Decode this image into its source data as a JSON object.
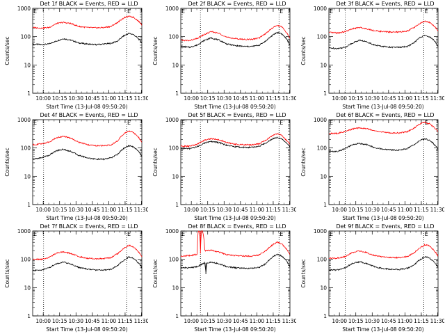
{
  "figure": {
    "x_tick_labels": [
      "10:00",
      "10:15",
      "10:30",
      "10:45",
      "11:00",
      "11:15",
      "11:30"
    ],
    "y_tick_labels": [
      "1",
      "10",
      "100",
      "1000"
    ],
    "xlabel": "Start Time (13-Jul-08 09:50:20)",
    "ylabel": "Counts/sec",
    "colors": {
      "events": "#000000",
      "lld": "#ff0000",
      "background": "#ffffff"
    }
  },
  "chart_data": [
    {
      "type": "line",
      "title": "Det 1f BLACK = Events, RED = LLD",
      "marker_left": "E",
      "marker_right": "E",
      "x_minutes_range": [
        0,
        100
      ],
      "ylim": [
        1,
        1000
      ],
      "yscale": "log",
      "vlines": [
        10,
        86
      ],
      "series": [
        {
          "name": "BLACK = Events",
          "x": [
            0,
            8,
            15,
            22,
            28,
            35,
            42,
            50,
            58,
            65,
            72,
            78,
            84,
            88,
            92,
            96,
            100
          ],
          "values": [
            55,
            52,
            55,
            70,
            85,
            75,
            60,
            55,
            52,
            55,
            58,
            70,
            110,
            130,
            120,
            90,
            60
          ]
        },
        {
          "name": "RED = LLD",
          "x": [
            0,
            8,
            15,
            22,
            28,
            35,
            42,
            50,
            58,
            65,
            72,
            78,
            84,
            88,
            92,
            96,
            100
          ],
          "values": [
            210,
            200,
            210,
            290,
            320,
            290,
            230,
            210,
            205,
            210,
            230,
            320,
            470,
            520,
            490,
            380,
            260
          ]
        }
      ]
    },
    {
      "type": "line",
      "title": "Det 2f BLACK = Events, RED = LLD",
      "marker_left": "E",
      "marker_right": "E",
      "x_minutes_range": [
        0,
        100
      ],
      "ylim": [
        1,
        1000
      ],
      "yscale": "log",
      "vlines": [
        18,
        90
      ],
      "series": [
        {
          "name": "BLACK = Events",
          "x": [
            0,
            8,
            15,
            22,
            28,
            35,
            42,
            50,
            58,
            65,
            72,
            78,
            84,
            88,
            92,
            96,
            100
          ],
          "values": [
            45,
            42,
            50,
            75,
            90,
            75,
            55,
            48,
            45,
            45,
            50,
            70,
            110,
            140,
            130,
            90,
            50
          ]
        },
        {
          "name": "RED = LLD",
          "x": [
            0,
            8,
            15,
            22,
            28,
            35,
            42,
            50,
            58,
            65,
            72,
            78,
            84,
            88,
            92,
            96,
            100
          ],
          "values": [
            75,
            72,
            85,
            120,
            150,
            130,
            95,
            85,
            80,
            80,
            90,
            130,
            200,
            250,
            230,
            150,
            90
          ]
        }
      ]
    },
    {
      "type": "line",
      "title": "Det 3f BLACK = Events, RED = LLD",
      "marker_left": "E",
      "marker_right": "E",
      "x_minutes_range": [
        0,
        100
      ],
      "ylim": [
        1,
        1000
      ],
      "yscale": "log",
      "vlines": [
        15,
        87
      ],
      "series": [
        {
          "name": "BLACK = Events",
          "x": [
            0,
            8,
            15,
            22,
            28,
            35,
            42,
            50,
            58,
            65,
            72,
            78,
            84,
            88,
            92,
            96,
            100
          ],
          "values": [
            40,
            38,
            42,
            60,
            75,
            65,
            50,
            45,
            42,
            42,
            45,
            60,
            95,
            110,
            100,
            75,
            45
          ]
        },
        {
          "name": "RED = LLD",
          "x": [
            0,
            8,
            15,
            22,
            28,
            35,
            42,
            50,
            58,
            65,
            72,
            78,
            84,
            88,
            92,
            96,
            100
          ],
          "values": [
            140,
            135,
            150,
            190,
            210,
            190,
            160,
            150,
            145,
            145,
            160,
            210,
            300,
            350,
            320,
            240,
            160
          ]
        }
      ]
    },
    {
      "type": "line",
      "title": "Det 4f BLACK = Events, RED = LLD",
      "marker_left": "E",
      "marker_right": "E",
      "x_minutes_range": [
        0,
        100
      ],
      "ylim": [
        1,
        1000
      ],
      "yscale": "log",
      "vlines": [
        10,
        86
      ],
      "series": [
        {
          "name": "BLACK = Events",
          "x": [
            0,
            8,
            15,
            22,
            28,
            35,
            42,
            50,
            58,
            65,
            72,
            78,
            84,
            88,
            92,
            96,
            100
          ],
          "values": [
            40,
            45,
            55,
            80,
            90,
            75,
            55,
            45,
            40,
            40,
            45,
            60,
            100,
            120,
            110,
            85,
            50
          ]
        },
        {
          "name": "RED = LLD",
          "x": [
            0,
            8,
            15,
            22,
            28,
            35,
            42,
            50,
            58,
            65,
            72,
            78,
            84,
            88,
            92,
            96,
            100
          ],
          "values": [
            130,
            140,
            160,
            230,
            260,
            220,
            160,
            130,
            120,
            120,
            130,
            180,
            320,
            400,
            360,
            260,
            160
          ]
        }
      ]
    },
    {
      "type": "line",
      "title": "Det 5f BLACK = Events, RED = LLD",
      "marker_left": "E",
      "marker_right": "E",
      "x_minutes_range": [
        0,
        100
      ],
      "ylim": [
        1,
        1000
      ],
      "yscale": "log",
      "vlines": [
        18,
        90
      ],
      "series": [
        {
          "name": "BLACK = Events",
          "x": [
            0,
            8,
            15,
            22,
            28,
            35,
            42,
            50,
            58,
            65,
            72,
            78,
            84,
            88,
            92,
            96,
            100
          ],
          "values": [
            95,
            95,
            110,
            150,
            170,
            155,
            125,
            110,
            105,
            105,
            115,
            150,
            210,
            240,
            220,
            160,
            110
          ]
        },
        {
          "name": "RED = LLD",
          "x": [
            0,
            8,
            15,
            22,
            28,
            35,
            42,
            50,
            58,
            65,
            72,
            78,
            84,
            88,
            92,
            96,
            100
          ],
          "values": [
            115,
            115,
            135,
            190,
            215,
            195,
            155,
            135,
            130,
            130,
            140,
            190,
            270,
            320,
            290,
            200,
            135
          ]
        }
      ]
    },
    {
      "type": "line",
      "title": "Det 6f BLACK = Events, RED = LLD",
      "marker_left": "E",
      "marker_right": "E",
      "x_minutes_range": [
        0,
        100
      ],
      "ylim": [
        1,
        1000
      ],
      "yscale": "log",
      "vlines": [
        15,
        87
      ],
      "series": [
        {
          "name": "BLACK = Events",
          "x": [
            0,
            8,
            15,
            22,
            28,
            35,
            42,
            50,
            58,
            65,
            72,
            78,
            84,
            88,
            92,
            96,
            100
          ],
          "values": [
            75,
            75,
            95,
            130,
            145,
            130,
            100,
            90,
            85,
            85,
            95,
            130,
            190,
            210,
            190,
            140,
            90
          ]
        },
        {
          "name": "RED = LLD",
          "x": [
            0,
            8,
            15,
            22,
            28,
            35,
            42,
            50,
            58,
            65,
            72,
            78,
            84,
            88,
            92,
            96,
            100
          ],
          "values": [
            320,
            330,
            380,
            470,
            520,
            480,
            400,
            360,
            340,
            340,
            380,
            500,
            720,
            800,
            720,
            540,
            380
          ]
        }
      ]
    },
    {
      "type": "line",
      "title": "Det 7f BLACK = Events, RED = LLD",
      "marker_left": "E",
      "marker_right": "E",
      "x_minutes_range": [
        0,
        100
      ],
      "ylim": [
        1,
        1000
      ],
      "yscale": "log",
      "vlines": [
        10,
        86
      ],
      "series": [
        {
          "name": "BLACK = Events",
          "x": [
            0,
            8,
            15,
            22,
            28,
            35,
            42,
            50,
            58,
            65,
            72,
            78,
            84,
            88,
            92,
            96,
            100
          ],
          "values": [
            40,
            42,
            50,
            70,
            80,
            68,
            52,
            45,
            42,
            42,
            45,
            60,
            95,
            120,
            110,
            80,
            50
          ]
        },
        {
          "name": "RED = LLD",
          "x": [
            0,
            8,
            15,
            22,
            28,
            35,
            42,
            50,
            58,
            65,
            72,
            78,
            84,
            88,
            92,
            96,
            100
          ],
          "values": [
            100,
            100,
            115,
            165,
            185,
            160,
            125,
            110,
            105,
            105,
            115,
            160,
            250,
            310,
            280,
            200,
            120
          ]
        }
      ]
    },
    {
      "type": "line",
      "title": "Det 8f BLACK = Events, RED = LLD",
      "marker_left": "E",
      "marker_right": "E",
      "x_minutes_range": [
        0,
        100
      ],
      "ylim": [
        1,
        1000
      ],
      "yscale": "log",
      "vlines": [
        18,
        90
      ],
      "series": [
        {
          "name": "BLACK = Events",
          "x": [
            0,
            8,
            15,
            22,
            23,
            24,
            28,
            35,
            42,
            50,
            58,
            65,
            72,
            78,
            84,
            88,
            92,
            96,
            100
          ],
          "values": [
            50,
            50,
            55,
            75,
            30,
            75,
            80,
            70,
            55,
            50,
            48,
            48,
            52,
            70,
            120,
            150,
            135,
            95,
            55
          ]
        },
        {
          "name": "RED = LLD",
          "x": [
            0,
            8,
            15,
            16,
            17,
            18,
            19,
            20,
            22,
            28,
            35,
            42,
            50,
            58,
            65,
            72,
            78,
            84,
            88,
            92,
            96,
            100
          ],
          "values": [
            130,
            135,
            150,
            1000,
            1000,
            160,
            1000,
            1000,
            200,
            210,
            180,
            145,
            135,
            130,
            130,
            145,
            200,
            320,
            400,
            360,
            250,
            150
          ]
        }
      ]
    },
    {
      "type": "line",
      "title": "Det 9f BLACK = Events, RED = LLD",
      "marker_left": "E",
      "marker_right": "E",
      "x_minutes_range": [
        0,
        100
      ],
      "ylim": [
        1,
        1000
      ],
      "yscale": "log",
      "vlines": [
        15,
        87
      ],
      "series": [
        {
          "name": "BLACK = Events",
          "x": [
            0,
            8,
            15,
            22,
            28,
            35,
            42,
            50,
            58,
            65,
            72,
            78,
            84,
            88,
            92,
            96,
            100
          ],
          "values": [
            42,
            42,
            50,
            72,
            82,
            70,
            54,
            47,
            44,
            44,
            48,
            62,
            100,
            125,
            112,
            82,
            50
          ]
        },
        {
          "name": "RED = LLD",
          "x": [
            0,
            8,
            15,
            22,
            28,
            35,
            42,
            50,
            58,
            65,
            72,
            78,
            84,
            88,
            92,
            96,
            100
          ],
          "values": [
            110,
            110,
            125,
            175,
            195,
            170,
            135,
            120,
            115,
            115,
            125,
            170,
            260,
            330,
            300,
            210,
            130
          ]
        }
      ]
    }
  ]
}
